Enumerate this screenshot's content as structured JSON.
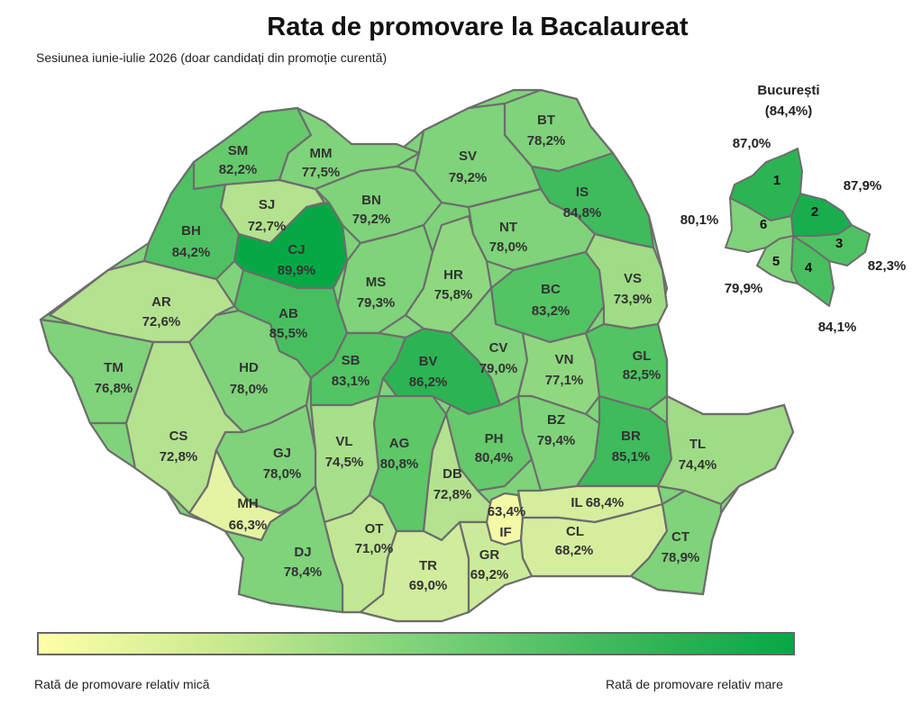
{
  "title": "Rata de promovare la Bacalaureat",
  "subtitle": "Sesiunea iunie-iulie 2026 (doar candidați din promoție curentă)",
  "legend": {
    "low_label": "Rată de promovare relativ mică",
    "high_label": "Rată de promovare relativ mare",
    "color_low": "#ffffa8",
    "color_high": "#06a845"
  },
  "counties": [
    {
      "code": "SM",
      "value": "82,2%"
    },
    {
      "code": "MM",
      "value": "77,5%"
    },
    {
      "code": "BT",
      "value": "78,2%"
    },
    {
      "code": "SV",
      "value": "79,2%"
    },
    {
      "code": "SJ",
      "value": "72,7%"
    },
    {
      "code": "BN",
      "value": "79,2%"
    },
    {
      "code": "IS",
      "value": "84,8%"
    },
    {
      "code": "BH",
      "value": "84,2%"
    },
    {
      "code": "CJ",
      "value": "89,9%"
    },
    {
      "code": "NT",
      "value": "78,0%"
    },
    {
      "code": "AR",
      "value": "72,6%"
    },
    {
      "code": "MS",
      "value": "79,3%"
    },
    {
      "code": "HR",
      "value": "75,8%"
    },
    {
      "code": "BC",
      "value": "83,2%"
    },
    {
      "code": "VS",
      "value": "73,9%"
    },
    {
      "code": "AB",
      "value": "85,5%"
    },
    {
      "code": "TM",
      "value": "76,8%"
    },
    {
      "code": "HD",
      "value": "78,0%"
    },
    {
      "code": "SB",
      "value": "83,1%"
    },
    {
      "code": "BV",
      "value": "86,2%"
    },
    {
      "code": "CV",
      "value": "79,0%"
    },
    {
      "code": "VN",
      "value": "77,1%"
    },
    {
      "code": "GL",
      "value": "82,5%"
    },
    {
      "code": "CS",
      "value": "72,8%"
    },
    {
      "code": "VL",
      "value": "74,5%"
    },
    {
      "code": "AG",
      "value": "80,8%"
    },
    {
      "code": "PH",
      "value": "80,4%"
    },
    {
      "code": "BZ",
      "value": "79,4%"
    },
    {
      "code": "BR",
      "value": "85,1%"
    },
    {
      "code": "TL",
      "value": "74,4%"
    },
    {
      "code": "GJ",
      "value": "78,0%"
    },
    {
      "code": "DB",
      "value": "72,8%"
    },
    {
      "code": "MH",
      "value": "66,3%"
    },
    {
      "code": "IL",
      "value": "68,4%"
    },
    {
      "code": "IF",
      "value": "63,4%"
    },
    {
      "code": "OT",
      "value": "71,0%"
    },
    {
      "code": "CL",
      "value": "68,2%"
    },
    {
      "code": "CT",
      "value": "78,9%"
    },
    {
      "code": "DJ",
      "value": "78,4%"
    },
    {
      "code": "TR",
      "value": "69,0%"
    },
    {
      "code": "GR",
      "value": "69,2%"
    }
  ],
  "bucuresti": {
    "title": "București",
    "total": "(84,4%)",
    "sectors": [
      {
        "number": "1",
        "value": "87,0%"
      },
      {
        "number": "2",
        "value": "87,9%"
      },
      {
        "number": "3",
        "value": "82,3%"
      },
      {
        "number": "4",
        "value": "84,1%"
      },
      {
        "number": "5",
        "value": "79,9%"
      },
      {
        "number": "6",
        "value": "80,1%"
      }
    ]
  }
}
